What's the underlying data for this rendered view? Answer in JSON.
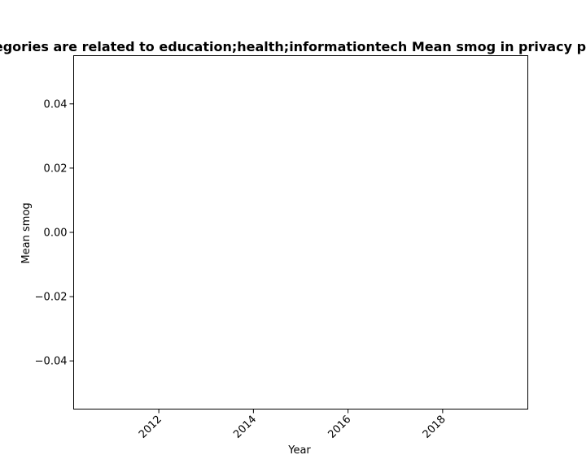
{
  "chart_data": {
    "type": "line",
    "title": "Categories are related to education;health;informationtech Mean smog in privacy policies",
    "xlabel": "Year",
    "ylabel": "Mean smog",
    "x": [],
    "y": [],
    "xlim": [
      2010.2,
      2019.8
    ],
    "ylim": [
      -0.055,
      0.055
    ],
    "xticks": [
      2012,
      2014,
      2016,
      2018
    ],
    "xtick_labels": [
      "2012",
      "2014",
      "2016",
      "2018"
    ],
    "yticks": [
      -0.04,
      -0.02,
      0.0,
      0.02,
      0.04
    ],
    "ytick_labels": [
      "−0.04",
      "−0.02",
      "0.00",
      "0.02",
      "0.04"
    ],
    "grid": false,
    "legend": "none"
  }
}
